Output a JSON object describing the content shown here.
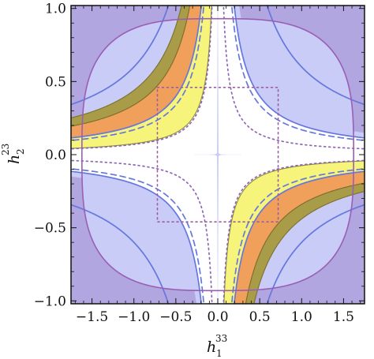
{
  "chart_data": {
    "type": "contour",
    "xlim": [
      -1.75,
      1.75
    ],
    "ylim": [
      -1.02,
      1.02
    ],
    "x_ticks": [
      -1.5,
      -1.0,
      -0.5,
      0.0,
      0.5,
      1.0,
      1.5
    ],
    "x_tick_labels": [
      "−1.5",
      "−1.0",
      "−0.5",
      "0.0",
      "0.5",
      "1.0",
      "1.5"
    ],
    "y_ticks": [
      -1.0,
      -0.5,
      0.0,
      0.5,
      1.0
    ],
    "y_tick_labels": [
      "−1.0",
      "−0.5",
      "0.0",
      "0.5",
      "1.0"
    ],
    "xlabel": {
      "base": "h",
      "sup": "33",
      "sub": "1"
    },
    "ylabel": {
      "base": "h",
      "sup": "23",
      "sub": "2"
    },
    "grid": false,
    "legend": "none",
    "regions": [
      {
        "kind": "filled-band",
        "fill": "#f6f47a",
        "edge": "#8a8a3c",
        "product_min": 0.075,
        "product_max": 0.2
      },
      {
        "kind": "filled-band",
        "fill": "#f0a05a",
        "edge": "#c06a55",
        "product_min": 0.2,
        "product_max": 0.34
      },
      {
        "kind": "filled-band",
        "fill": "#a89c48",
        "edge": "#7a6f2e",
        "product_min": 0.34,
        "product_max": 0.44
      },
      {
        "kind": "outer-contour",
        "fill": "#b1a6df",
        "edge": "#9a5fb3",
        "radius_x": 1.62,
        "radius_y": 0.93,
        "superellipse_power": 3.2
      }
    ],
    "curves": [
      {
        "style": "solid",
        "color": "#6677dd",
        "product": 0.6
      },
      {
        "style": "solid",
        "color": "#6677dd",
        "product": 0.2
      },
      {
        "style": "dashed",
        "color": "#6677dd",
        "product": 0.17
      },
      {
        "style": "dotted",
        "color": "#8e66b8",
        "product": 0.07
      },
      {
        "style": "dotted",
        "color": "#9a5f9e",
        "box_x": [
          -0.72,
          0.72
        ],
        "box_y": [
          -0.46,
          0.46
        ]
      }
    ],
    "colors": {
      "outer": "#b1a6df",
      "light_blue": "#c8ccf6",
      "white": "#ffffff",
      "yellow": "#f6f47a",
      "orange": "#f0a05a",
      "olive": "#a89c48",
      "blue_line": "#6677dd",
      "purple_line": "#9a5fb3"
    }
  }
}
